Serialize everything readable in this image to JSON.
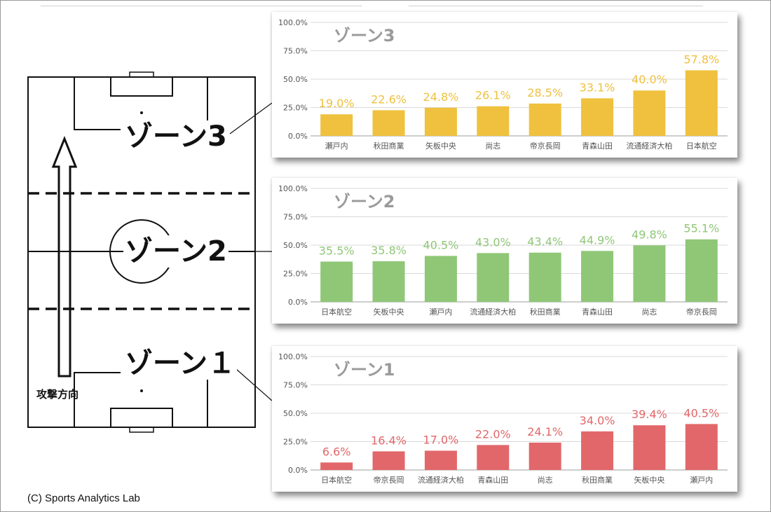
{
  "pitch": {
    "zone_labels": {
      "zone3": "ゾーン3",
      "zone2": "ゾーン2",
      "zone1": "ゾーン１"
    },
    "attack_direction_label": "攻撃方向"
  },
  "copyright": "(C) Sports Analytics Lab",
  "colors": {
    "zone3": "#efc13e",
    "zone2": "#8fc777",
    "zone1": "#e2676a",
    "axis_text": "#555555",
    "grid": "#d9d9d9"
  },
  "chart_data": [
    {
      "type": "bar",
      "title": "ゾーン3",
      "categories": [
        "瀬戸内",
        "秋田商業",
        "矢板中央",
        "尚志",
        "帝京長岡",
        "青森山田",
        "流通経済大柏",
        "日本航空"
      ],
      "values": [
        19.0,
        22.6,
        24.8,
        26.1,
        28.5,
        33.1,
        40.0,
        57.8
      ],
      "value_labels": [
        "19.0%",
        "22.6%",
        "24.8%",
        "26.1%",
        "28.5%",
        "33.1%",
        "40.0%",
        "57.8%"
      ],
      "yticks": [
        "0.0%",
        "25.0%",
        "50.0%",
        "75.0%",
        "100.0%"
      ],
      "ylim": [
        0,
        100
      ],
      "grid": true,
      "color": "#efc13e"
    },
    {
      "type": "bar",
      "title": "ゾーン2",
      "categories": [
        "日本航空",
        "矢板中央",
        "瀬戸内",
        "流通経済大柏",
        "秋田商業",
        "青森山田",
        "尚志",
        "帝京長岡"
      ],
      "values": [
        35.5,
        35.8,
        40.5,
        43.0,
        43.4,
        44.9,
        49.8,
        55.1
      ],
      "value_labels": [
        "35.5%",
        "35.8%",
        "40.5%",
        "43.0%",
        "43.4%",
        "44.9%",
        "49.8%",
        "55.1%"
      ],
      "yticks": [
        "0.0%",
        "25.0%",
        "50.0%",
        "75.0%",
        "100.0%"
      ],
      "ylim": [
        0,
        100
      ],
      "grid": true,
      "color": "#8fc777"
    },
    {
      "type": "bar",
      "title": "ゾーン1",
      "categories": [
        "日本航空",
        "帝京長岡",
        "流通経済大柏",
        "青森山田",
        "尚志",
        "秋田商業",
        "矢板中央",
        "瀬戸内"
      ],
      "values": [
        6.6,
        16.4,
        17.0,
        22.0,
        24.1,
        34.0,
        39.4,
        40.5
      ],
      "value_labels": [
        "6.6%",
        "16.4%",
        "17.0%",
        "22.0%",
        "24.1%",
        "34.0%",
        "39.4%",
        "40.5%"
      ],
      "yticks": [
        "0.0%",
        "25.0%",
        "50.0%",
        "75.0%",
        "100.0%"
      ],
      "ylim": [
        0,
        100
      ],
      "grid": true,
      "color": "#e2676a"
    }
  ]
}
